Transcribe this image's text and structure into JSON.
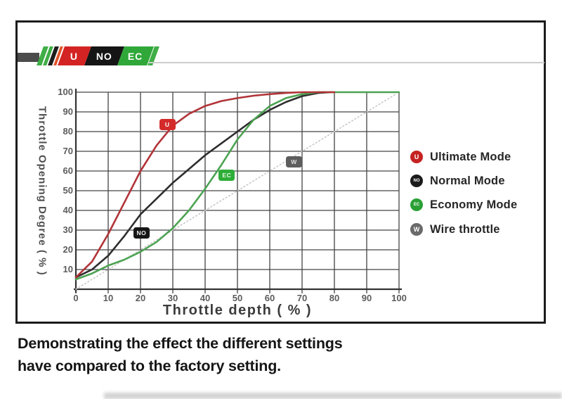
{
  "logo": {
    "badges": [
      {
        "text": "U",
        "bg": "#d42323",
        "x": 87,
        "w": 38
      },
      {
        "text": "NO",
        "bg": "#151515",
        "x": 125,
        "w": 47
      },
      {
        "text": "EC",
        "bg": "#2fa839",
        "x": 172,
        "w": 42
      }
    ]
  },
  "chart_data": {
    "type": "line",
    "xlabel": "Throttle depth ( % )",
    "ylabel": "Throttle Opening Degree ( % )",
    "xlim": [
      0,
      100
    ],
    "ylim": [
      0,
      100
    ],
    "grid": true,
    "legend_position": "right",
    "x_ticks": [
      0,
      10,
      20,
      30,
      40,
      50,
      60,
      70,
      80,
      90,
      100
    ],
    "y_ticks": [
      100,
      90,
      80,
      70,
      60,
      50,
      40,
      30,
      20,
      10
    ],
    "series": [
      {
        "id": "wire-throttle",
        "name": "Wire throttle",
        "color": "#c6c6c6",
        "dotted": true,
        "points": [
          [
            0,
            0
          ],
          [
            99,
            99
          ]
        ],
        "badge": {
          "text": "W",
          "x": 67.5,
          "y": 64.8,
          "bg": "#5d5d5d",
          "fg": "#e0e0e0"
        }
      },
      {
        "id": "normal-mode",
        "name": "Normal Mode",
        "color": "#2e2e2e",
        "dotted": false,
        "points": [
          [
            0,
            6
          ],
          [
            5,
            10
          ],
          [
            10,
            17
          ],
          [
            15,
            27
          ],
          [
            20,
            38
          ],
          [
            25,
            46
          ],
          [
            30,
            54
          ],
          [
            35,
            61
          ],
          [
            40,
            68
          ],
          [
            45,
            74
          ],
          [
            50,
            80
          ],
          [
            55,
            86
          ],
          [
            60,
            91
          ],
          [
            65,
            95
          ],
          [
            70,
            98
          ],
          [
            75,
            99.6
          ],
          [
            79,
            100
          ]
        ],
        "badge": {
          "text": "NO",
          "x": 20.3,
          "y": 28.5,
          "bg": "#161616",
          "fg": "#eeeeee"
        }
      },
      {
        "id": "economy-mode",
        "name": "Economy Mode",
        "color": "#4da352",
        "dotted": false,
        "points": [
          [
            0,
            5
          ],
          [
            5,
            8
          ],
          [
            10,
            12
          ],
          [
            15,
            15
          ],
          [
            20,
            19
          ],
          [
            25,
            24
          ],
          [
            30,
            31
          ],
          [
            35,
            40
          ],
          [
            40,
            51
          ],
          [
            45,
            63
          ],
          [
            50,
            76
          ],
          [
            55,
            86
          ],
          [
            60,
            93
          ],
          [
            65,
            97
          ],
          [
            70,
            99
          ],
          [
            75,
            100
          ],
          [
            100,
            100
          ]
        ],
        "badge": {
          "text": "EC",
          "x": 46.7,
          "y": 57.8,
          "bg": "#2ead38",
          "fg": "#eafbe7"
        }
      },
      {
        "id": "ultimate-mode",
        "name": "Ultimate Mode",
        "color": "#b13438",
        "dotted": false,
        "points": [
          [
            0,
            6
          ],
          [
            5,
            14
          ],
          [
            10,
            28
          ],
          [
            15,
            44
          ],
          [
            20,
            60
          ],
          [
            25,
            73
          ],
          [
            30,
            83
          ],
          [
            35,
            89
          ],
          [
            40,
            93
          ],
          [
            45,
            95.5
          ],
          [
            50,
            97
          ],
          [
            55,
            98.2
          ],
          [
            60,
            99
          ],
          [
            65,
            99.6
          ],
          [
            70,
            100
          ],
          [
            80,
            100
          ]
        ],
        "badge": {
          "text": "U",
          "x": 28.3,
          "y": 83.4,
          "bg": "#d42a2a",
          "fg": "#ffffff"
        }
      }
    ],
    "legend": [
      {
        "letter": "U",
        "color": "#c52222",
        "label": "Ultimate Mode"
      },
      {
        "letter": "NO",
        "color": "#1a1a1a",
        "label": "Normal Mode"
      },
      {
        "letter": "EC",
        "color": "#2aa035",
        "label": "Economy Mode"
      },
      {
        "letter": "W",
        "color": "#6a6a6a",
        "label": "Wire throttle"
      }
    ]
  },
  "caption": {
    "line1": "Demonstrating the effect the different settings",
    "line2": "have compared to the factory setting."
  }
}
